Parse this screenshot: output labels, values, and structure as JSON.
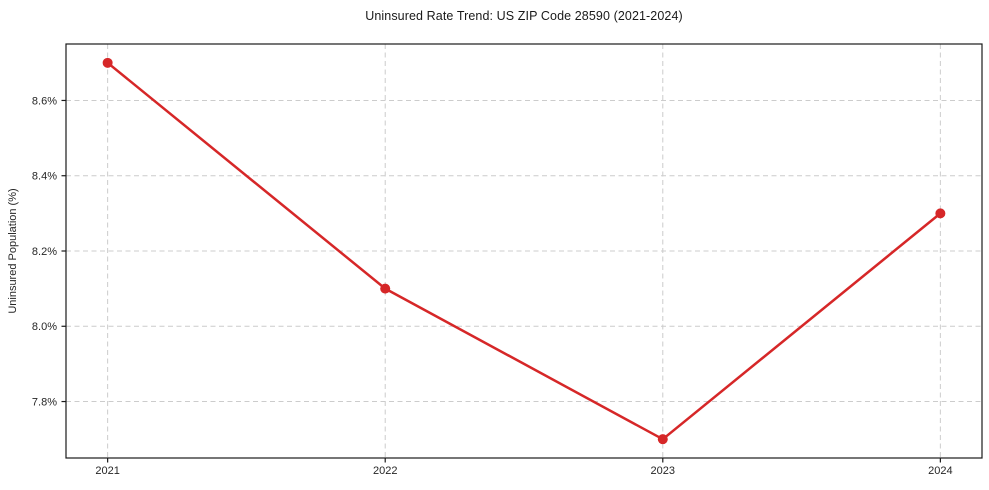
{
  "chart_data": {
    "type": "line",
    "title": "Uninsured Rate Trend: US ZIP Code 28590 (2021-2024)",
    "xlabel": "",
    "ylabel": "Uninsured Population (%)",
    "x": [
      2021,
      2022,
      2023,
      2024
    ],
    "values": [
      8.7,
      8.1,
      7.7,
      8.3
    ],
    "xtick_labels": [
      "2021",
      "2022",
      "2023",
      "2024"
    ],
    "xticks": [
      2021,
      2022,
      2023,
      2024
    ],
    "yticks": [
      7.8,
      8.0,
      8.2,
      8.4,
      8.6
    ],
    "ytick_labels": [
      "7.8%",
      "8.0%",
      "8.2%",
      "8.4%",
      "8.6%"
    ],
    "xlim": [
      2020.85,
      2024.15
    ],
    "ylim": [
      7.65,
      8.75
    ],
    "grid": true,
    "legend": "none",
    "line_color": "#d62728",
    "marker_color": "#d62728",
    "grid_color": "#cccccc",
    "axis_color": "#1a1a1a",
    "tick_label_color": "#262626",
    "background_color": "#ffffff"
  }
}
